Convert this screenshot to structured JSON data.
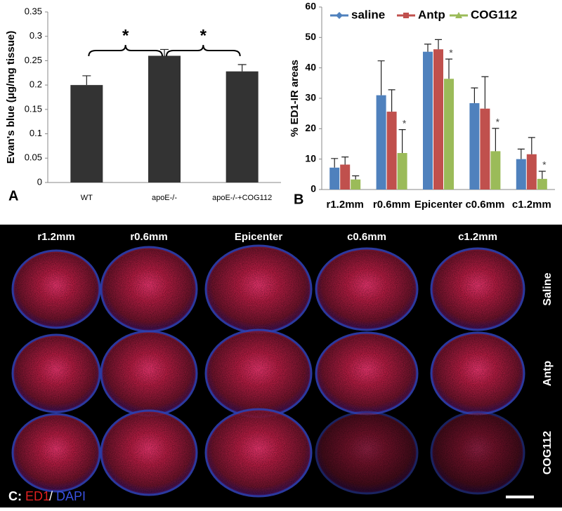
{
  "chart_data": [
    {
      "type": "bar",
      "panel": "A",
      "ylabel": "Evan's blue (μg/mg tissue)",
      "categories": [
        "WT",
        "apoE-/-",
        "apoE-/-+COG112"
      ],
      "values": [
        0.2,
        0.26,
        0.228
      ],
      "errors": [
        0.019,
        0.013,
        0.014
      ],
      "color": "#333333",
      "ylim": [
        0,
        0.35
      ],
      "yticks": [
        0,
        0.05,
        0.1,
        0.15,
        0.2,
        0.25,
        0.3,
        0.35
      ],
      "annotations": [
        "*",
        "*"
      ]
    },
    {
      "type": "grouped_bar",
      "panel": "B",
      "ylabel": "% ED1-IR areas",
      "categories": [
        "r1.2mm",
        "r0.6mm",
        "Epicenter",
        "c0.6mm",
        "c1.2mm"
      ],
      "series": [
        {
          "name": "saline",
          "color": "#4f81bd",
          "values": [
            7.2,
            31,
            45.3,
            28.4,
            10
          ],
          "errors": [
            3,
            11.3,
            2.5,
            5,
            3.3
          ]
        },
        {
          "name": "Antp",
          "color": "#c0504d",
          "values": [
            8.2,
            25.6,
            46.1,
            26.6,
            11.6
          ],
          "errors": [
            2.5,
            7.2,
            3.2,
            10.5,
            5.5
          ]
        },
        {
          "name": "COG112",
          "color": "#9bbb59",
          "values": [
            3.3,
            12,
            36.4,
            12.6,
            3.5
          ],
          "errors": [
            1.2,
            7.7,
            6.5,
            7.5,
            2.5
          ],
          "annotations": [
            null,
            "*",
            "*",
            "*",
            "*"
          ]
        }
      ],
      "ylim": [
        0,
        60
      ],
      "yticks": [
        0,
        10,
        20,
        30,
        40,
        50,
        60
      ],
      "legend": "top"
    }
  ],
  "image_panel": {
    "panel": "C:",
    "columns": [
      "r1.2mm",
      "r0.6mm",
      "Epicenter",
      "c0.6mm",
      "c1.2mm"
    ],
    "rows": [
      "Saline",
      "Antp",
      "COG112"
    ],
    "stain_1": "ED1",
    "separator": "/",
    "stain_2": "DAPI"
  }
}
